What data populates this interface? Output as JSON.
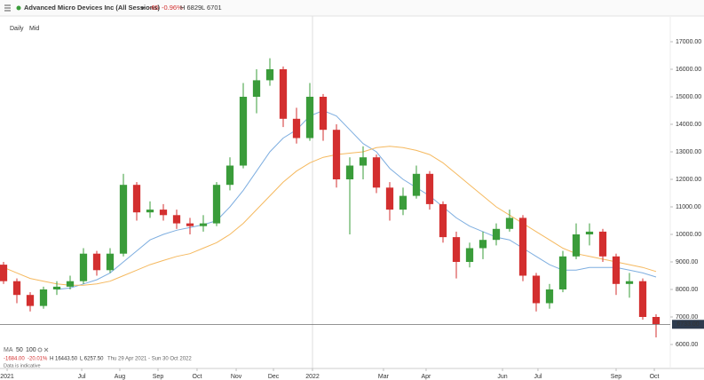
{
  "header": {
    "instrument": "Advanced Micro Devices Inc (All Sessions)",
    "change": "-65",
    "change_pct": "-0.96%",
    "high": "H 6829",
    "low": "L 6701"
  },
  "toolbar": {
    "interval": "Daily",
    "price_type": "Mid"
  },
  "footer": {
    "indicator": "MA",
    "change": "-1684.00",
    "change_pct": "-20.01%",
    "high": "H 16443.50",
    "low": "L 6257.50",
    "range": "Thu 29 Apr 2021 - Sun 30 Oct 2022",
    "note": "Data is indicative"
  },
  "chart_data": {
    "type": "candlestick",
    "categories": [
      null,
      null,
      null,
      null,
      null,
      null,
      null,
      null,
      null,
      null,
      null,
      null,
      null,
      null,
      null,
      null,
      null,
      null,
      null,
      null,
      null,
      null,
      null,
      null,
      null,
      null,
      null,
      null,
      null,
      null,
      null,
      null,
      null,
      null,
      null,
      null,
      null,
      null,
      null,
      null,
      null,
      null,
      null,
      null,
      null,
      null,
      null,
      null,
      null,
      null
    ],
    "open": [
      8900,
      8300,
      7800,
      7400,
      8000,
      8100,
      8300,
      9300,
      8700,
      9300,
      11800,
      10800,
      10900,
      10700,
      10400,
      10300,
      10400,
      11800,
      12500,
      15000,
      15600,
      16000,
      14200,
      13500,
      15000,
      13800,
      12000,
      12500,
      12800,
      11700,
      10900,
      11400,
      12200,
      11100,
      9900,
      9000,
      9500,
      9800,
      10200,
      10600,
      8500,
      7500,
      8000,
      9200,
      10000,
      10100,
      9200,
      8200,
      8300,
      7000
    ],
    "high": [
      9000,
      8400,
      7900,
      8100,
      8300,
      8500,
      9500,
      9400,
      9500,
      12200,
      11900,
      11200,
      11100,
      10900,
      10600,
      10700,
      11900,
      12800,
      15500,
      16000,
      16400,
      16100,
      14600,
      15500,
      15100,
      14000,
      12800,
      13200,
      12900,
      11900,
      11700,
      12500,
      12300,
      11200,
      10100,
      9700,
      10100,
      10400,
      10900,
      10700,
      8600,
      8200,
      9400,
      10400,
      10400,
      10200,
      9300,
      8600,
      8400,
      7100
    ],
    "low": [
      8200,
      7500,
      7200,
      7300,
      7800,
      8000,
      8200,
      8500,
      8600,
      9200,
      10500,
      10600,
      10500,
      10200,
      10000,
      10100,
      10300,
      11600,
      12400,
      14400,
      15400,
      13900,
      13300,
      13400,
      13400,
      11700,
      10000,
      12000,
      11500,
      10500,
      10700,
      11300,
      10900,
      9700,
      8400,
      8800,
      9100,
      9600,
      10100,
      8300,
      7200,
      7300,
      7900,
      9100,
      9600,
      9000,
      7800,
      7700,
      6900,
      6257.5
    ],
    "close": [
      8300,
      7800,
      7400,
      8000,
      8100,
      8300,
      9300,
      8700,
      9300,
      11800,
      10800,
      10900,
      10700,
      10400,
      10300,
      10400,
      11800,
      12500,
      15000,
      15600,
      16000,
      14200,
      13500,
      15000,
      13800,
      12000,
      12500,
      12800,
      11700,
      10900,
      11400,
      12200,
      11100,
      9900,
      9000,
      9500,
      9800,
      10200,
      10600,
      8500,
      7500,
      8000,
      9200,
      10000,
      10100,
      9200,
      8200,
      8300,
      7000,
      6733
    ],
    "up_color": "#3a9c3a",
    "down_color": "#d32f2f",
    "series": [
      {
        "name": "50",
        "color": "#7eaee0",
        "values": [
          null,
          null,
          null,
          null,
          8000,
          8050,
          8200,
          8350,
          8600,
          9000,
          9400,
          9800,
          10000,
          10150,
          10250,
          10350,
          10500,
          11000,
          11600,
          12300,
          13000,
          13500,
          13800,
          14300,
          14500,
          14300,
          13800,
          13300,
          13000,
          12400,
          12000,
          11700,
          11400,
          11000,
          10600,
          10300,
          10100,
          9900,
          9800,
          9500,
          9200,
          8900,
          8700,
          8700,
          8800,
          8800,
          8800,
          8700,
          8600,
          8450
        ]
      },
      {
        "name": "100",
        "color": "#f5b95f",
        "values": [
          8800,
          8600,
          8400,
          8300,
          8200,
          8150,
          8150,
          8200,
          8300,
          8500,
          8700,
          8900,
          9050,
          9200,
          9300,
          9500,
          9700,
          10000,
          10400,
          10900,
          11400,
          11900,
          12300,
          12600,
          12800,
          12900,
          12950,
          13000,
          13150,
          13200,
          13150,
          13050,
          12900,
          12600,
          12200,
          11800,
          11400,
          11000,
          10700,
          10400,
          10100,
          9800,
          9500,
          9300,
          9200,
          9100,
          9000,
          8900,
          8800,
          8650
        ]
      }
    ],
    "last_price": {
      "value": 6733,
      "label": "6733.00"
    },
    "xlim": [
      -0.2667,
      50.0667
    ],
    "xticks": [
      {
        "value": 0.27,
        "label": "2021"
      },
      {
        "value": 5.87,
        "label": "Jul"
      },
      {
        "value": 8.73,
        "label": "Aug"
      },
      {
        "value": 11.6,
        "label": "Sep"
      },
      {
        "value": 14.53,
        "label": "Oct"
      },
      {
        "value": 17.47,
        "label": "Nov"
      },
      {
        "value": 20.27,
        "label": "Dec"
      },
      {
        "value": 23.2,
        "label": "2022"
      },
      {
        "value": 28.53,
        "label": "Mar"
      },
      {
        "value": 31.73,
        "label": "Apr"
      },
      {
        "value": 37.47,
        "label": "Jun"
      },
      {
        "value": 40.13,
        "label": "Jul"
      },
      {
        "value": 46,
        "label": "Sep"
      },
      {
        "value": 48.87,
        "label": "Oct"
      }
    ],
    "ylim": [
      5129,
      18129
    ],
    "yticks": [
      {
        "value": 6000,
        "label": "6000.00"
      },
      {
        "value": 7000,
        "label": "7000.00"
      },
      {
        "value": 8000,
        "label": "8000.00"
      },
      {
        "value": 9000,
        "label": "9000.00"
      },
      {
        "value": 10000,
        "label": "10000.00"
      },
      {
        "value": 11000,
        "label": "11000.00"
      },
      {
        "value": 12000,
        "label": "12000.00"
      },
      {
        "value": 13000,
        "label": "13000.00"
      },
      {
        "value": 14000,
        "label": "14000.00"
      },
      {
        "value": 15000,
        "label": "15000.00"
      },
      {
        "value": 16000,
        "label": "16000.00"
      },
      {
        "value": 17000,
        "label": "17000.00"
      }
    ],
    "grid": false
  }
}
